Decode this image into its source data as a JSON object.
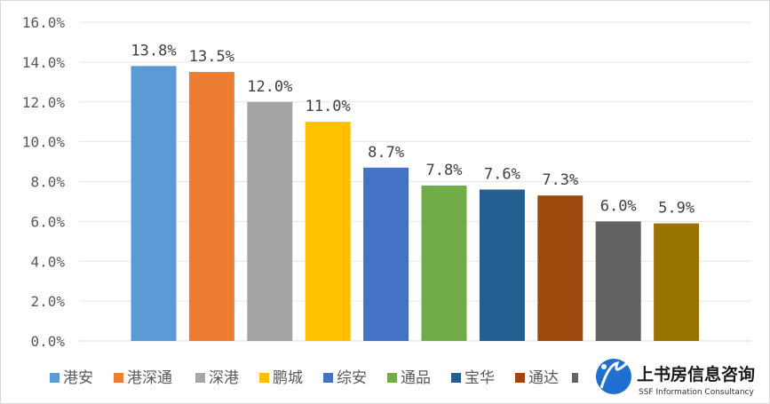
{
  "chart_data": {
    "type": "bar",
    "categories": [
      "港安",
      "港深通",
      "深港",
      "鹏城",
      "综安",
      "通品",
      "宝华",
      "通达",
      "",
      ""
    ],
    "values": [
      13.8,
      13.5,
      12.0,
      11.0,
      8.7,
      7.8,
      7.6,
      7.3,
      6.0,
      5.9
    ],
    "data_labels": [
      "13.8%",
      "13.5%",
      "12.0%",
      "11.0%",
      "8.7%",
      "7.8%",
      "7.6%",
      "7.3%",
      "6.0%",
      "5.9%"
    ],
    "colors": [
      "#5b9bd5",
      "#ed7d31",
      "#a5a5a5",
      "#ffc000",
      "#4472c4",
      "#70ad47",
      "#255e91",
      "#9e480e",
      "#636363",
      "#997300"
    ],
    "yticks": [
      "0.0%",
      "2.0%",
      "4.0%",
      "6.0%",
      "8.0%",
      "10.0%",
      "12.0%",
      "14.0%",
      "16.0%"
    ],
    "ylim": [
      0,
      16
    ],
    "grid": true,
    "legend_position": "bottom",
    "title": "",
    "xlabel": "",
    "ylabel": ""
  },
  "watermark": {
    "name_cn": "上书房信息咨询",
    "name_en": "SSF Information Consultancy"
  }
}
